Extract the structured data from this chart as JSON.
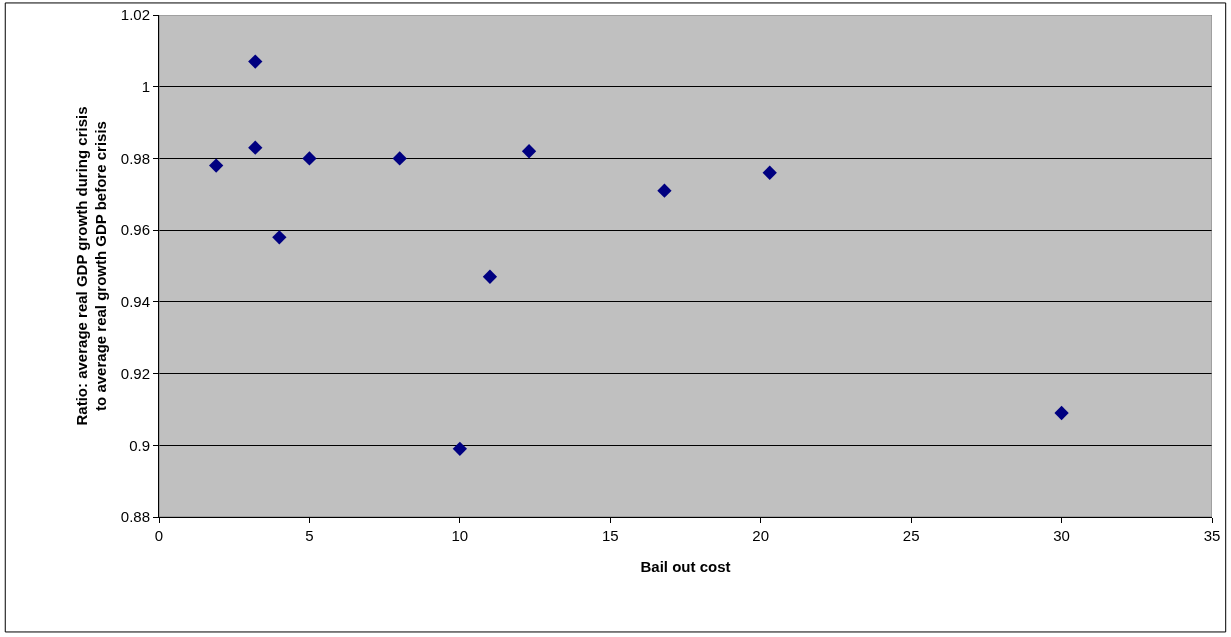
{
  "chart_data": {
    "type": "scatter",
    "xlabel": "Bail out cost",
    "ylabel": "Ratio: average real GDP growth during crisis\nto average real growth GDP before crisis",
    "x": [
      1.9,
      3.2,
      3.2,
      4.0,
      5.0,
      8.0,
      10.0,
      11.0,
      12.3,
      16.8,
      20.3,
      30.0
    ],
    "series": [
      {
        "color": "#000080",
        "values": [
          0.978,
          1.007,
          0.983,
          0.958,
          0.98,
          0.98,
          0.899,
          0.947,
          0.982,
          0.971,
          0.976,
          0.909
        ]
      }
    ],
    "marker": "diamond",
    "grid": "y",
    "xlim": [
      0,
      35
    ],
    "xticks": [
      0,
      5,
      10,
      15,
      20,
      25,
      30,
      35
    ],
    "ylim": [
      0.88,
      1.02
    ],
    "yticks": [
      0.88,
      0.9,
      0.92,
      0.94,
      0.96,
      0.98,
      1,
      1.02
    ]
  }
}
